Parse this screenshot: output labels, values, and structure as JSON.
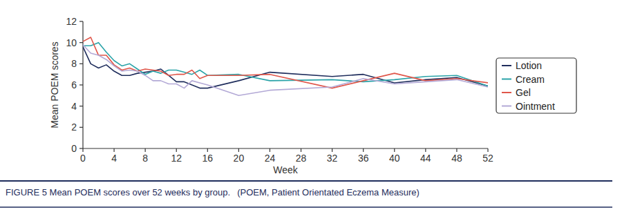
{
  "chart_data": {
    "type": "line",
    "title": "FIGURE 5 Mean POEM scores over 52 weeks by group.",
    "subtitle": "(POEM, Patient Orientated Eczema Measure)",
    "x_label": "Week",
    "y_label": "Mean POEM scores",
    "x": [
      0,
      1,
      2,
      3,
      4,
      5,
      6,
      7,
      8,
      9,
      10,
      11,
      12,
      13,
      14,
      15,
      16,
      20,
      24,
      32,
      36,
      40,
      44,
      48,
      52
    ],
    "series": [
      {
        "name": "Lotion",
        "color": "#1f2d5c",
        "values": [
          9.6,
          8.0,
          7.6,
          7.9,
          7.3,
          6.9,
          6.9,
          7.1,
          7.2,
          7.3,
          7.5,
          6.9,
          6.3,
          6.3,
          6.0,
          5.7,
          5.7,
          6.4,
          7.2,
          6.8,
          7.0,
          6.2,
          6.5,
          6.7,
          5.9
        ]
      },
      {
        "name": "Cream",
        "color": "#2aa3a8",
        "values": [
          9.7,
          9.7,
          10.0,
          9.1,
          8.3,
          7.8,
          8.0,
          7.5,
          7.0,
          7.3,
          7.1,
          7.4,
          7.4,
          7.2,
          7.0,
          7.4,
          6.9,
          7.0,
          6.4,
          6.5,
          6.3,
          6.5,
          6.8,
          6.9,
          5.9
        ]
      },
      {
        "name": "Gel",
        "color": "#e0564a",
        "values": [
          10.1,
          10.5,
          8.8,
          8.8,
          7.9,
          7.4,
          7.6,
          7.3,
          7.5,
          7.4,
          7.3,
          6.9,
          7.0,
          7.0,
          7.4,
          6.6,
          6.9,
          6.9,
          7.0,
          5.7,
          6.4,
          7.1,
          6.4,
          6.6,
          6.2
        ]
      },
      {
        "name": "Ointment",
        "color": "#b3a9d6",
        "values": [
          9.8,
          9.0,
          8.8,
          8.4,
          7.8,
          7.3,
          7.4,
          7.3,
          6.9,
          6.4,
          6.4,
          6.1,
          6.1,
          5.7,
          6.4,
          6.2,
          6.0,
          5.0,
          5.5,
          5.8,
          6.6,
          6.1,
          6.3,
          6.5,
          5.8
        ]
      }
    ],
    "xlim": [
      0,
      52
    ],
    "xticks": [
      0,
      4,
      8,
      12,
      16,
      20,
      24,
      28,
      32,
      36,
      40,
      44,
      48,
      52
    ],
    "ylim": [
      0,
      12
    ],
    "yticks": [
      0,
      2,
      4,
      6,
      8,
      10,
      12
    ],
    "grid": false,
    "legend": "right"
  }
}
